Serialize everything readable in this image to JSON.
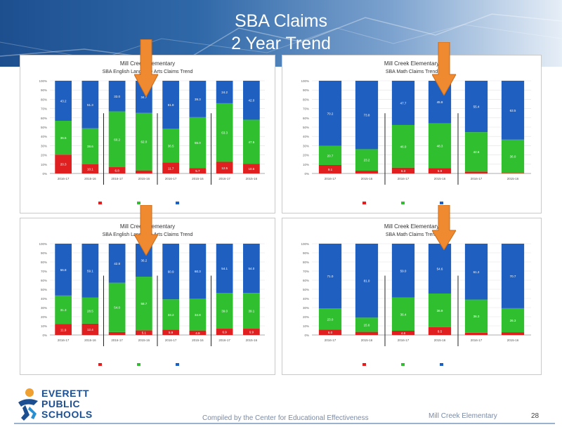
{
  "slide": {
    "title_line1": "SBA Claims",
    "title_line2": "2 Year Trend",
    "footer_compiled": "Compiled by the Center for Educational Effectiveness",
    "footer_school": "Mill Creek Elementary",
    "page_number": "28",
    "logo_line1": "EVERETT",
    "logo_line2": "PUBLIC",
    "logo_line3": "SCHOOLS"
  },
  "colors": {
    "red": "#e02020",
    "green": "#2fbf2f",
    "blue": "#1f5fbf",
    "arrow": "#f08a30",
    "header_dark": "#1d4f8f"
  },
  "chart_data": [
    {
      "type": "bar",
      "stacked": true,
      "title": "Mill Creek Elementary",
      "subtitle": "SBA English Language Arts Claims Trend",
      "categories": [
        "2016-17",
        "2015-16",
        "2016-17",
        "2015-16",
        "2016-17",
        "2015-16",
        "2016-17",
        "2015-16"
      ],
      "series": [
        {
          "values": [
            20.3,
            10.1,
            6.8,
            3.3,
            11.7,
            5.7,
            12.5,
            10.5
          ]
        },
        {
          "values": [
            36.5,
            38.6,
            60.2,
            62.0,
            36.5,
            55.0,
            63.3,
            47.5
          ]
        },
        {
          "values": [
            43.2,
            51.3,
            33.0,
            34.7,
            51.8,
            39.3,
            24.2,
            42.0
          ]
        }
      ],
      "ylim": [
        0,
        100
      ],
      "dividers_after": [
        1,
        3,
        5
      ],
      "highlight_index": 3
    },
    {
      "type": "bar",
      "stacked": true,
      "title": "Mill Creek Elementary",
      "subtitle": "SBA Math Claims Trend",
      "categories": [
        "2016-17",
        "2015-16",
        "2016-17",
        "2015-16",
        "2016-17",
        "2015-16"
      ],
      "series": [
        {
          "values": [
            9.1,
            3.0,
            6.3,
            5.9,
            2.0,
            0.5
          ]
        },
        {
          "values": [
            20.7,
            23.2,
            46.0,
            48.3,
            42.6,
            36.0
          ]
        },
        {
          "values": [
            70.2,
            73.8,
            47.7,
            45.8,
            55.4,
            63.5
          ]
        }
      ],
      "ylim": [
        0,
        100
      ],
      "dividers_after": [
        1,
        3
      ],
      "highlight_index": 3
    },
    {
      "type": "bar",
      "stacked": true,
      "title": "Mill Creek Elementary",
      "subtitle": "SBA English Language Arts Claims Trend",
      "categories": [
        "2016-17",
        "2015-16",
        "2016-17",
        "2015-16",
        "2016-17",
        "2015-16",
        "2016-17",
        "2015-16"
      ],
      "series": [
        {
          "values": [
            11.9,
            12.4,
            3.2,
            5.1,
            5.9,
            4.9,
            6.9,
            6.9
          ]
        },
        {
          "values": [
            31.3,
            28.5,
            54.0,
            58.7,
            33.2,
            34.8,
            39.0,
            39.1
          ]
        },
        {
          "values": [
            56.8,
            59.1,
            42.8,
            36.2,
            60.9,
            60.3,
            54.1,
            54.0
          ]
        }
      ],
      "ylim": [
        0,
        100
      ],
      "dividers_after": [
        1,
        3,
        5
      ],
      "highlight_index": 3
    },
    {
      "type": "bar",
      "stacked": true,
      "title": "Mill Creek Elementary",
      "subtitle": "SBA Math Claims Trend",
      "categories": [
        "2016-17",
        "2015-16",
        "2016-17",
        "2015-16",
        "2016-17",
        "2015-16"
      ],
      "series": [
        {
          "values": [
            6.0,
            3.4,
            4.6,
            8.5,
            2.5,
            3.0
          ]
        },
        {
          "values": [
            23.0,
            15.6,
            36.4,
            36.9,
            36.3,
            26.3
          ]
        },
        {
          "values": [
            71.0,
            81.0,
            59.0,
            54.6,
            61.2,
            70.7
          ]
        }
      ],
      "ylim": [
        0,
        100
      ],
      "dividers_after": [
        1,
        3
      ],
      "highlight_index": 3
    }
  ]
}
